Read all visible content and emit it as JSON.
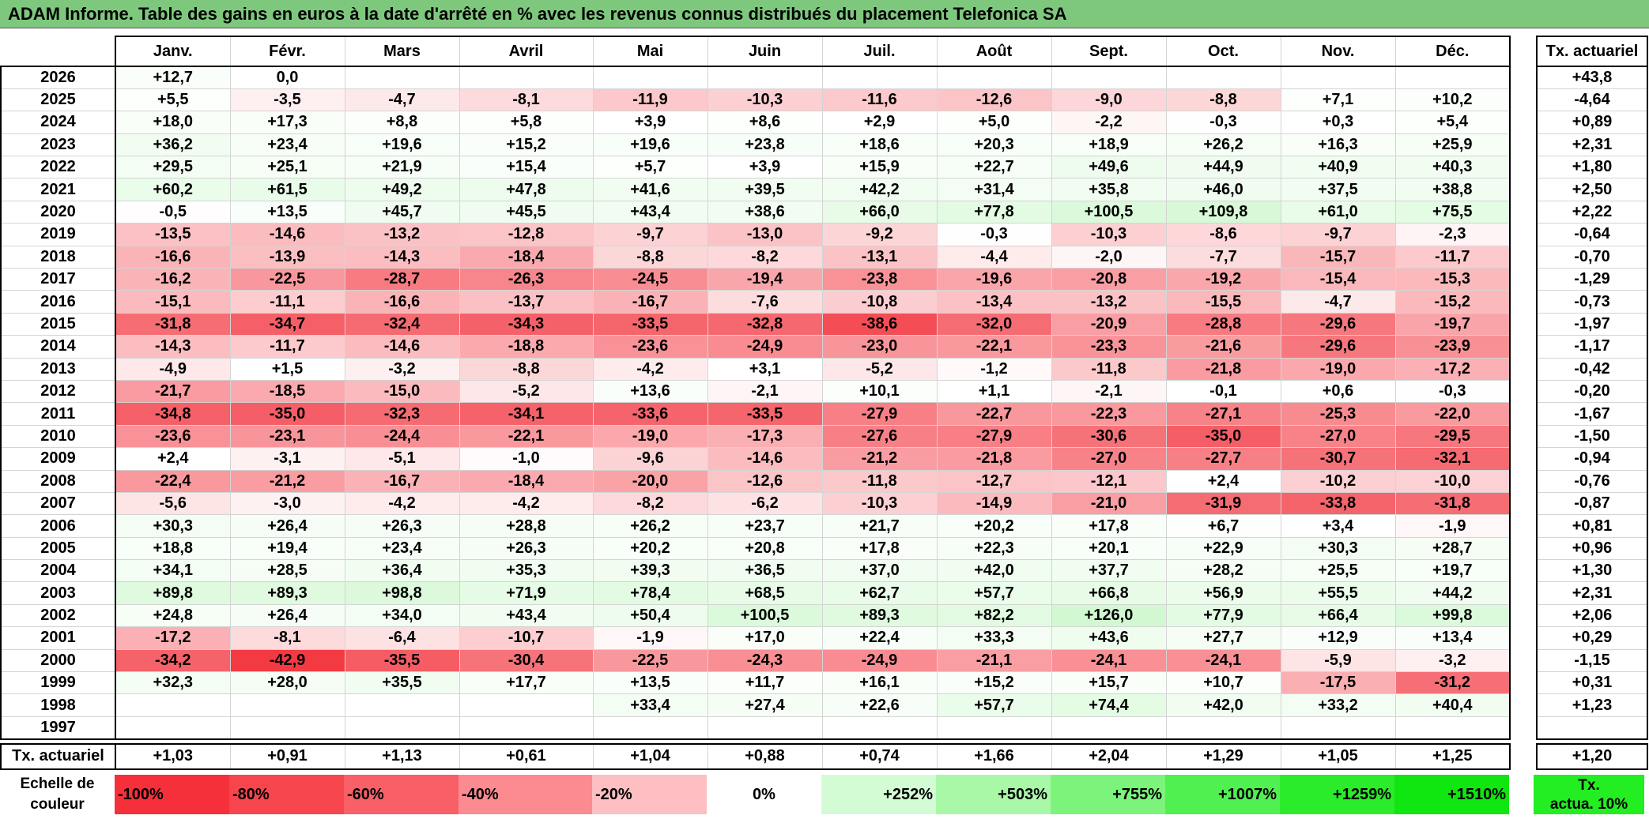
{
  "title": "ADAM Informe. Table des gains en euros à la date d'arrêté en % avec les revenus connus distribués du placement Telefonica SA",
  "months": [
    "Janv.",
    "Févr.",
    "Mars",
    "Avril",
    "Mai",
    "Juin",
    "Juil.",
    "Août",
    "Sept.",
    "Oct.",
    "Nov.",
    "Déc."
  ],
  "actuarial_header": "Tx. actuariel",
  "rows": [
    {
      "year": "2026",
      "values": [
        "+12,7",
        "0,0",
        "",
        "",
        "",
        "",
        "",
        "",
        "",
        "",
        "",
        ""
      ],
      "actuarial": "+43,8"
    },
    {
      "year": "2025",
      "values": [
        "+5,5",
        "-3,5",
        "-4,7",
        "-8,1",
        "-11,9",
        "-10,3",
        "-11,6",
        "-12,6",
        "-9,0",
        "-8,8",
        "+7,1",
        "+10,2"
      ],
      "actuarial": "-4,64"
    },
    {
      "year": "2024",
      "values": [
        "+18,0",
        "+17,3",
        "+8,8",
        "+5,8",
        "+3,9",
        "+8,6",
        "+2,9",
        "+5,0",
        "-2,2",
        "-0,3",
        "+0,3",
        "+5,4"
      ],
      "actuarial": "+0,89"
    },
    {
      "year": "2023",
      "values": [
        "+36,2",
        "+23,4",
        "+19,6",
        "+15,2",
        "+19,6",
        "+23,8",
        "+18,6",
        "+20,3",
        "+18,9",
        "+26,2",
        "+16,3",
        "+25,9"
      ],
      "actuarial": "+2,31"
    },
    {
      "year": "2022",
      "values": [
        "+29,5",
        "+25,1",
        "+21,9",
        "+15,4",
        "+5,7",
        "+3,9",
        "+15,9",
        "+22,7",
        "+49,6",
        "+44,9",
        "+40,9",
        "+40,3"
      ],
      "actuarial": "+1,80"
    },
    {
      "year": "2021",
      "values": [
        "+60,2",
        "+61,5",
        "+49,2",
        "+47,8",
        "+41,6",
        "+39,5",
        "+42,2",
        "+31,4",
        "+35,8",
        "+46,0",
        "+37,5",
        "+38,8"
      ],
      "actuarial": "+2,50"
    },
    {
      "year": "2020",
      "values": [
        "-0,5",
        "+13,5",
        "+45,7",
        "+45,5",
        "+43,4",
        "+38,6",
        "+66,0",
        "+77,8",
        "+100,5",
        "+109,8",
        "+61,0",
        "+75,5"
      ],
      "actuarial": "+2,22"
    },
    {
      "year": "2019",
      "values": [
        "-13,5",
        "-14,6",
        "-13,2",
        "-12,8",
        "-9,7",
        "-13,0",
        "-9,2",
        "-0,3",
        "-10,3",
        "-8,6",
        "-9,7",
        "-2,3"
      ],
      "actuarial": "-0,64"
    },
    {
      "year": "2018",
      "values": [
        "-16,6",
        "-13,9",
        "-14,3",
        "-18,4",
        "-8,8",
        "-8,2",
        "-13,1",
        "-4,4",
        "-2,0",
        "-7,7",
        "-15,7",
        "-11,7"
      ],
      "actuarial": "-0,70"
    },
    {
      "year": "2017",
      "values": [
        "-16,2",
        "-22,5",
        "-28,7",
        "-26,3",
        "-24,5",
        "-19,4",
        "-23,8",
        "-19,6",
        "-20,8",
        "-19,2",
        "-15,4",
        "-15,3"
      ],
      "actuarial": "-1,29"
    },
    {
      "year": "2016",
      "values": [
        "-15,1",
        "-11,1",
        "-16,6",
        "-13,7",
        "-16,7",
        "-7,6",
        "-10,8",
        "-13,4",
        "-13,2",
        "-15,5",
        "-4,7",
        "-15,2"
      ],
      "actuarial": "-0,73"
    },
    {
      "year": "2015",
      "values": [
        "-31,8",
        "-34,7",
        "-32,4",
        "-34,3",
        "-33,5",
        "-32,8",
        "-38,6",
        "-32,0",
        "-20,9",
        "-28,8",
        "-29,6",
        "-19,7"
      ],
      "actuarial": "-1,97"
    },
    {
      "year": "2014",
      "values": [
        "-14,3",
        "-11,7",
        "-14,6",
        "-18,8",
        "-23,6",
        "-24,9",
        "-23,0",
        "-22,1",
        "-23,3",
        "-21,6",
        "-29,6",
        "-23,9"
      ],
      "actuarial": "-1,17"
    },
    {
      "year": "2013",
      "values": [
        "-4,9",
        "+1,5",
        "-3,2",
        "-8,8",
        "-4,2",
        "+3,1",
        "-5,2",
        "-1,2",
        "-11,8",
        "-21,8",
        "-19,0",
        "-17,2"
      ],
      "actuarial": "-0,42"
    },
    {
      "year": "2012",
      "values": [
        "-21,7",
        "-18,5",
        "-15,0",
        "-5,2",
        "+13,6",
        "-2,1",
        "+10,1",
        "+1,1",
        "-2,1",
        "-0,1",
        "+0,6",
        "-0,3"
      ],
      "actuarial": "-0,20"
    },
    {
      "year": "2011",
      "values": [
        "-34,8",
        "-35,0",
        "-32,3",
        "-34,1",
        "-33,6",
        "-33,5",
        "-27,9",
        "-22,7",
        "-22,3",
        "-27,1",
        "-25,3",
        "-22,0"
      ],
      "actuarial": "-1,67"
    },
    {
      "year": "2010",
      "values": [
        "-23,6",
        "-23,1",
        "-24,4",
        "-22,1",
        "-19,0",
        "-17,3",
        "-27,6",
        "-27,9",
        "-30,6",
        "-35,0",
        "-27,0",
        "-29,5"
      ],
      "actuarial": "-1,50"
    },
    {
      "year": "2009",
      "values": [
        "+2,4",
        "-3,1",
        "-5,1",
        "-1,0",
        "-9,6",
        "-14,6",
        "-21,2",
        "-21,8",
        "-27,0",
        "-27,7",
        "-30,7",
        "-32,1"
      ],
      "actuarial": "-0,94"
    },
    {
      "year": "2008",
      "values": [
        "-22,4",
        "-21,2",
        "-16,7",
        "-18,4",
        "-20,0",
        "-12,6",
        "-11,8",
        "-12,7",
        "-12,1",
        "+2,4",
        "-10,2",
        "-10,0"
      ],
      "actuarial": "-0,76"
    },
    {
      "year": "2007",
      "values": [
        "-5,6",
        "-3,0",
        "-4,2",
        "-4,2",
        "-8,2",
        "-6,2",
        "-10,3",
        "-14,9",
        "-21,0",
        "-31,9",
        "-33,8",
        "-31,8"
      ],
      "actuarial": "-0,87"
    },
    {
      "year": "2006",
      "values": [
        "+30,3",
        "+26,4",
        "+26,3",
        "+28,8",
        "+26,2",
        "+23,7",
        "+21,7",
        "+20,2",
        "+17,8",
        "+6,7",
        "+3,4",
        "-1,9"
      ],
      "actuarial": "+0,81"
    },
    {
      "year": "2005",
      "values": [
        "+18,8",
        "+19,4",
        "+23,4",
        "+26,3",
        "+20,2",
        "+20,8",
        "+17,8",
        "+22,3",
        "+20,1",
        "+22,9",
        "+30,3",
        "+28,7"
      ],
      "actuarial": "+0,96"
    },
    {
      "year": "2004",
      "values": [
        "+34,1",
        "+28,5",
        "+36,4",
        "+35,3",
        "+39,3",
        "+36,5",
        "+37,0",
        "+42,0",
        "+37,7",
        "+28,2",
        "+25,5",
        "+19,7"
      ],
      "actuarial": "+1,30"
    },
    {
      "year": "2003",
      "values": [
        "+89,8",
        "+89,3",
        "+98,8",
        "+71,9",
        "+78,4",
        "+68,5",
        "+62,7",
        "+57,7",
        "+66,8",
        "+56,9",
        "+55,5",
        "+44,2"
      ],
      "actuarial": "+2,31"
    },
    {
      "year": "2002",
      "values": [
        "+24,8",
        "+26,4",
        "+34,0",
        "+43,4",
        "+50,4",
        "+100,5",
        "+89,3",
        "+82,2",
        "+126,0",
        "+77,9",
        "+66,4",
        "+99,8"
      ],
      "actuarial": "+2,06"
    },
    {
      "year": "2001",
      "values": [
        "-17,2",
        "-8,1",
        "-6,4",
        "-10,7",
        "-1,9",
        "+17,0",
        "+22,4",
        "+33,3",
        "+43,6",
        "+27,7",
        "+12,9",
        "+13,4"
      ],
      "actuarial": "+0,29"
    },
    {
      "year": "2000",
      "values": [
        "-34,2",
        "-42,9",
        "-35,5",
        "-30,4",
        "-22,5",
        "-24,3",
        "-24,9",
        "-21,1",
        "-24,1",
        "-24,1",
        "-5,9",
        "-3,2"
      ],
      "actuarial": "-1,15"
    },
    {
      "year": "1999",
      "values": [
        "+32,3",
        "+28,0",
        "+35,5",
        "+17,7",
        "+13,5",
        "+11,7",
        "+16,1",
        "+15,2",
        "+15,7",
        "+10,7",
        "-17,5",
        "-31,2"
      ],
      "actuarial": "+0,31"
    },
    {
      "year": "1998",
      "values": [
        "",
        "",
        "",
        "",
        "+33,4",
        "+27,4",
        "+22,6",
        "+57,7",
        "+74,4",
        "+42,0",
        "+33,2",
        "+40,4"
      ],
      "actuarial": "+1,23"
    },
    {
      "year": "1997",
      "values": [
        "",
        "",
        "",
        "",
        "",
        "",
        "",
        "",
        "",
        "",
        "",
        ""
      ],
      "actuarial": ""
    }
  ],
  "summary": {
    "label": "Tx. actuariel",
    "values": [
      "+1,03",
      "+0,91",
      "+1,13",
      "+0,61",
      "+1,04",
      "+0,88",
      "+0,74",
      "+1,66",
      "+2,04",
      "+1,29",
      "+1,05",
      "+1,25"
    ],
    "total": "+1,20"
  },
  "legend": {
    "label_line1": "Echelle de",
    "label_line2": "couleur",
    "items": [
      {
        "label": "-100%",
        "color": "#f5303a",
        "align": "left"
      },
      {
        "label": "-80%",
        "color": "#f6454d",
        "align": "left"
      },
      {
        "label": "-60%",
        "color": "#f85f66",
        "align": "left"
      },
      {
        "label": "-40%",
        "color": "#fb8b90",
        "align": "left"
      },
      {
        "label": "-20%",
        "color": "#fdbfc2",
        "align": "left"
      },
      {
        "label": "0%",
        "color": "#ffffff",
        "align": "center"
      },
      {
        "label": "+252%",
        "color": "#d4fcd4",
        "align": "right"
      },
      {
        "label": "+503%",
        "color": "#a8f8a8",
        "align": "right"
      },
      {
        "label": "+755%",
        "color": "#7cf47c",
        "align": "right"
      },
      {
        "label": "+1007%",
        "color": "#50f050",
        "align": "right"
      },
      {
        "label": "+1259%",
        "color": "#2aec2a",
        "align": "right"
      },
      {
        "label": "+1510%",
        "color": "#10e610",
        "align": "right"
      }
    ],
    "actuarial_line1": "Tx.",
    "actuarial_line2": "actua. 10%",
    "actuarial_color": "#22ee22"
  }
}
